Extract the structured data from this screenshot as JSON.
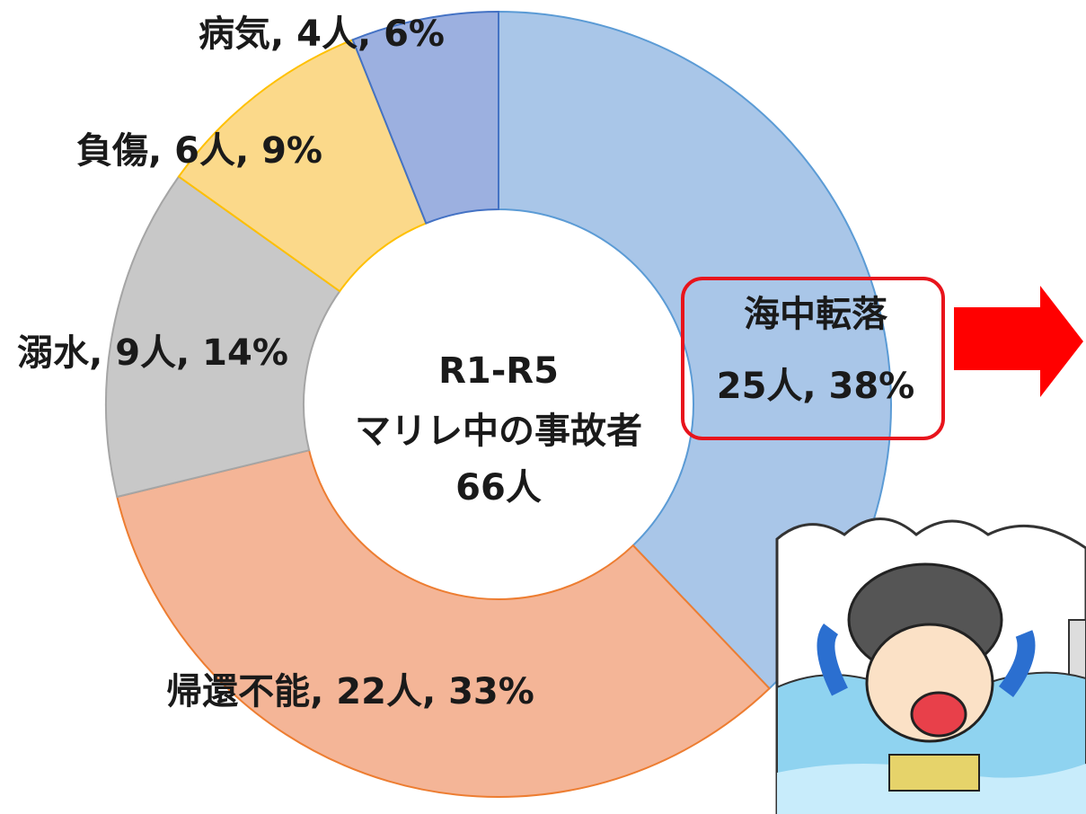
{
  "chart_data": {
    "type": "donut",
    "center_text": [
      "R1-R5",
      "マリレ中の事故者",
      "66人"
    ],
    "callout_title": "海中転落",
    "values": [
      25,
      22,
      9,
      6,
      4
    ],
    "value_labels": [
      "25人, 38%",
      "帰還不能, 22人, 33%",
      "溺水, 9人, 14%",
      "負傷, 6人, 9%",
      "病気, 4人, 6%"
    ],
    "colors": [
      "#a9c6e8",
      "#f4b597",
      "#c8c8c8",
      "#fbd98a",
      "#9cb0e0"
    ],
    "edge_colors": [
      "#5b9bd5",
      "#ed7d31",
      "#a5a5a5",
      "#ffc000",
      "#4472c4"
    ]
  }
}
